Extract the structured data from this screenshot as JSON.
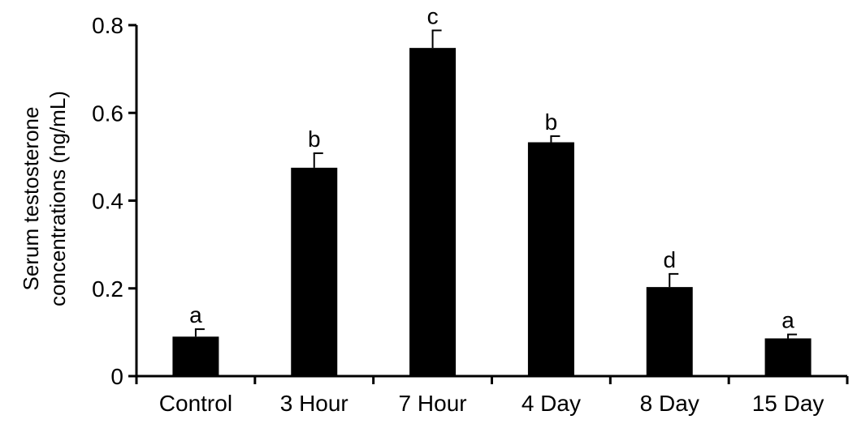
{
  "chart_data": {
    "type": "bar",
    "title": "",
    "ylabel_lines": [
      "Serum testosterone",
      "concentrations (ng/mL)"
    ],
    "xlabel": "",
    "categories": [
      "Control",
      "3 Hour",
      "7 Hour",
      "4 Day",
      "8 Day",
      "15 Day"
    ],
    "values": [
      0.09,
      0.475,
      0.748,
      0.533,
      0.203,
      0.086
    ],
    "errors": [
      0.017,
      0.033,
      0.04,
      0.014,
      0.03,
      0.009
    ],
    "significance_letters": [
      "a",
      "b",
      "c",
      "b",
      "d",
      "a"
    ],
    "ylim": [
      0,
      0.8
    ],
    "yticks": [
      0,
      0.2,
      0.4,
      0.6,
      0.8
    ],
    "ytick_labels": [
      "0",
      "0.2",
      "0.4",
      "0.6",
      "0.8"
    ],
    "bar_color": "#000000",
    "grid": false,
    "legend": "none"
  }
}
